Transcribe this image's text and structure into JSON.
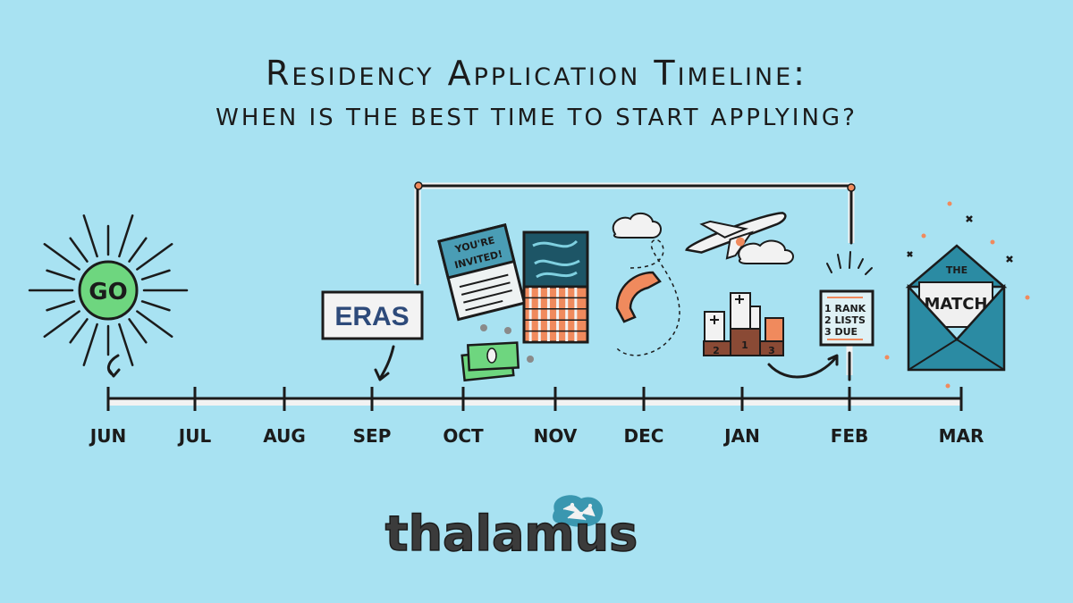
{
  "header": {
    "title": "Residency Application Timeline:",
    "subtitle": "WHEN IS THE BEST TIME TO START APPLYING?"
  },
  "timeline": {
    "months": [
      "JUN",
      "JUL",
      "AUG",
      "SEP",
      "OCT",
      "NOV",
      "DEC",
      "JAN",
      "FEB",
      "MAR"
    ]
  },
  "illustrations": {
    "start_sun_label": "GO",
    "eras_label": "ERAS",
    "invite_text_line1": "YOU'RE",
    "invite_text_line2": "INVITED!",
    "podium_places": [
      "1",
      "2",
      "3"
    ],
    "rank_list": [
      "1 RANK",
      "2 LISTS",
      "3 DUE"
    ],
    "envelope_the": "THE",
    "envelope_match": "MATCH"
  },
  "brand": {
    "logo_text": "thalamus"
  },
  "colors": {
    "background": "#a8e2f2",
    "sun": "#6ed67f",
    "accent_orange": "#f08a5d",
    "teal": "#2b8ba3",
    "dark_teal": "#1d5566",
    "logo_gray": "#3b3b3b"
  }
}
